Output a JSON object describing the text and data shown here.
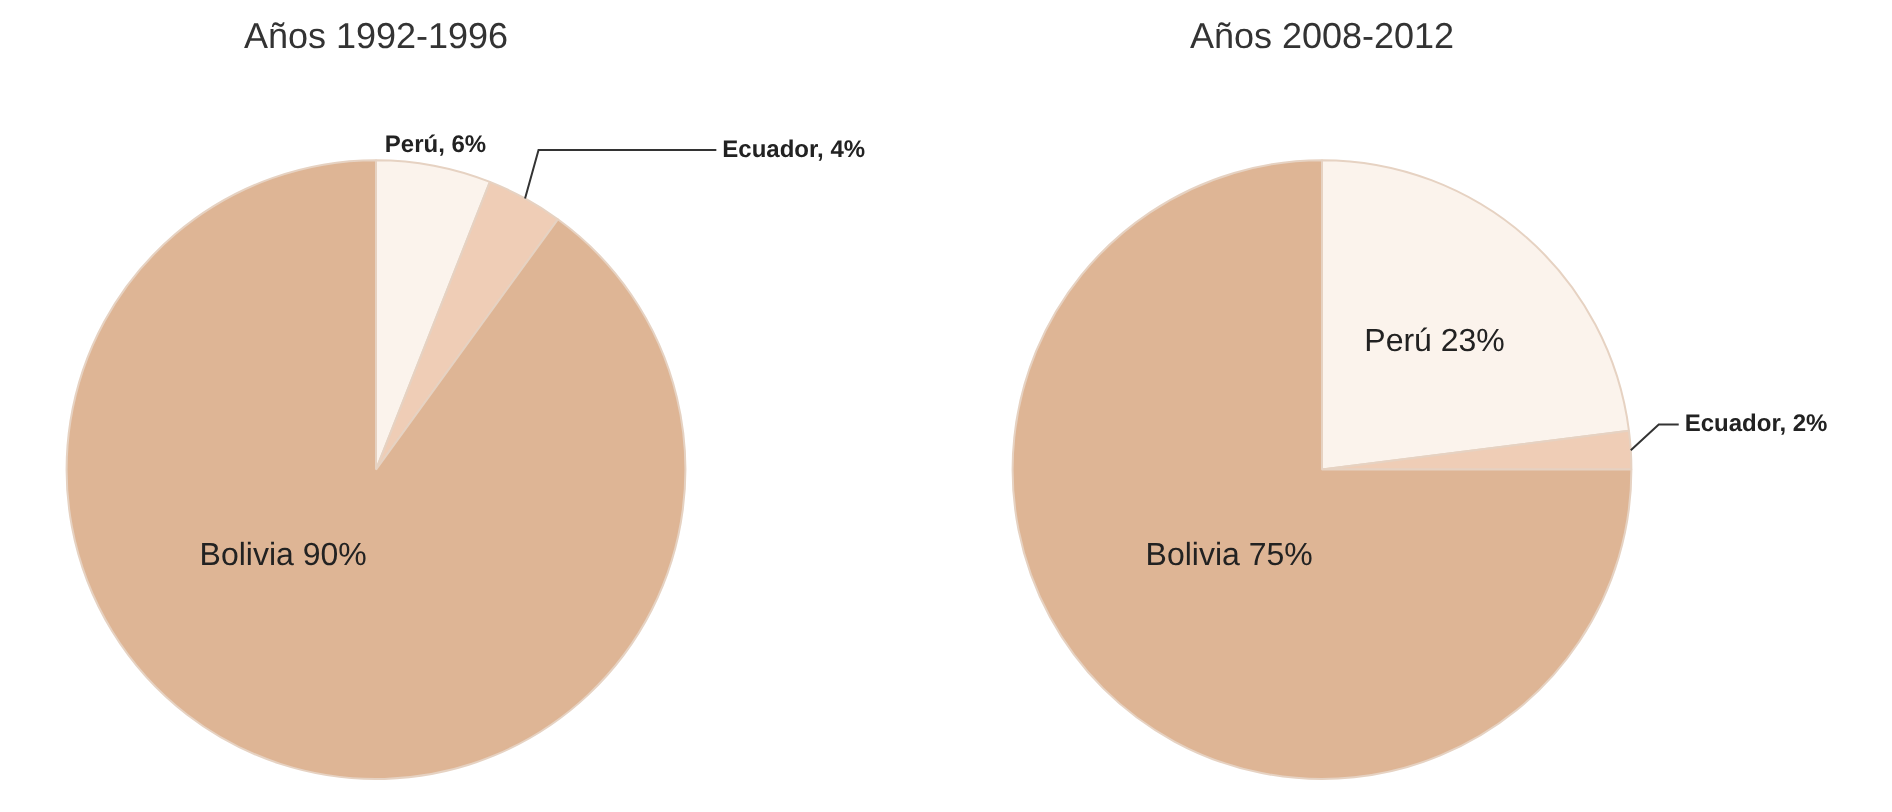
{
  "chart_data": [
    {
      "type": "pie",
      "title": "Años 1992-1996",
      "categories": [
        "Perú",
        "Ecuador",
        "Bolivia"
      ],
      "values": [
        6,
        4,
        90
      ],
      "colors": [
        "#fbf3ec",
        "#efcdb6",
        "#deb595"
      ],
      "value_labels": [
        "6%",
        "4%",
        "90%"
      ]
    },
    {
      "type": "pie",
      "title": "Años 2008-2012",
      "categories": [
        "Perú",
        "Ecuador",
        "Bolivia"
      ],
      "values": [
        23,
        2,
        75
      ],
      "colors": [
        "#fbf3ec",
        "#efcdb6",
        "#deb595"
      ],
      "value_labels": [
        "23%",
        "2%",
        "75%"
      ]
    }
  ]
}
